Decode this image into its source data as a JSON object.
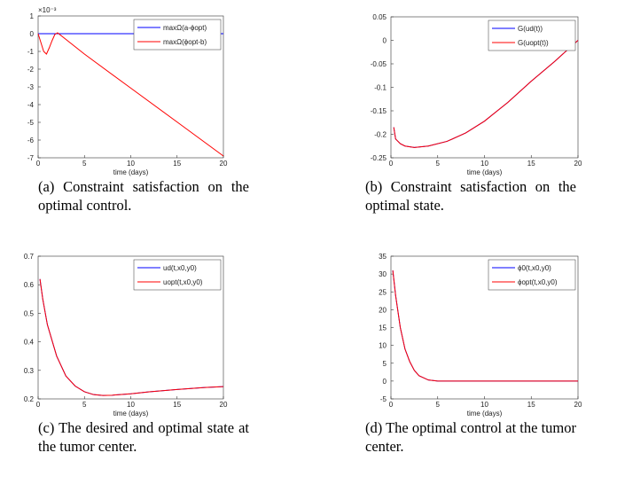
{
  "chart_data": [
    {
      "type": "line",
      "caption": "(a) Constraint satisfaction on the optimal control.",
      "xlabel": "time (days)",
      "y_exponent": "×10⁻³",
      "x": [
        0,
        0.3,
        0.6,
        0.9,
        1.2,
        1.5,
        1.8,
        2.1,
        5,
        10,
        15,
        20
      ],
      "series": [
        {
          "name": "maxΩ(a-ϕopt)",
          "color": "#0000ff",
          "values": [
            0,
            0,
            0,
            0,
            0,
            0,
            0,
            0,
            0,
            0,
            0,
            0
          ]
        },
        {
          "name": "maxΩ(ϕopt-b)",
          "color": "#ff0000",
          "values": [
            0,
            -0.5,
            -1.0,
            -1.15,
            -0.8,
            -0.4,
            -0.05,
            0.05,
            -1.15,
            -3.07,
            -4.98,
            -6.9
          ]
        }
      ],
      "xlim": [
        0,
        20
      ],
      "xticks": [
        0,
        5,
        10,
        15,
        20
      ],
      "ylim": [
        -7,
        1
      ],
      "yticks": [
        -7,
        -6,
        -5,
        -4,
        -3,
        -2,
        -1,
        0,
        1
      ],
      "legend": "upper right"
    },
    {
      "type": "line",
      "caption": "(b) Constraint satisfaction on the optimal state.",
      "xlabel": "time (days)",
      "x": [
        0.3,
        0.5,
        1,
        1.5,
        2.5,
        4,
        6,
        8,
        10,
        12.5,
        15,
        17.5,
        20
      ],
      "series": [
        {
          "name": "G(ud(t))",
          "color": "#0000ff",
          "values": [
            -0.185,
            -0.21,
            -0.22,
            -0.225,
            -0.228,
            -0.225,
            -0.215,
            -0.197,
            -0.172,
            -0.132,
            -0.087,
            -0.045,
            0
          ]
        },
        {
          "name": "G(uopt(t))",
          "color": "#ff0000",
          "values": [
            -0.185,
            -0.21,
            -0.22,
            -0.225,
            -0.228,
            -0.225,
            -0.215,
            -0.197,
            -0.172,
            -0.132,
            -0.087,
            -0.045,
            0
          ]
        }
      ],
      "xlim": [
        0,
        20
      ],
      "xticks": [
        0,
        5,
        10,
        15,
        20
      ],
      "ylim": [
        -0.25,
        0.05
      ],
      "yticks": [
        -0.25,
        -0.2,
        -0.15,
        -0.1,
        -0.05,
        0,
        0.05
      ],
      "legend": "upper right"
    },
    {
      "type": "line",
      "caption": "(c) The desired and optimal state at the tumor center.",
      "xlabel": "time (days)",
      "x": [
        0.2,
        0.5,
        1,
        2,
        3,
        4,
        5,
        6,
        7,
        8,
        10,
        12,
        15,
        18,
        20
      ],
      "series": [
        {
          "name": "ud(t,x0,y0)",
          "color": "#0000ff",
          "values": [
            0.62,
            0.55,
            0.46,
            0.35,
            0.28,
            0.245,
            0.225,
            0.215,
            0.212,
            0.213,
            0.218,
            0.225,
            0.233,
            0.24,
            0.243
          ]
        },
        {
          "name": "uopt(t,x0,y0)",
          "color": "#ff0000",
          "values": [
            0.62,
            0.55,
            0.46,
            0.35,
            0.28,
            0.245,
            0.225,
            0.215,
            0.212,
            0.213,
            0.218,
            0.225,
            0.233,
            0.24,
            0.243
          ]
        }
      ],
      "xlim": [
        0,
        20
      ],
      "xticks": [
        0,
        5,
        10,
        15,
        20
      ],
      "ylim": [
        0.2,
        0.7
      ],
      "yticks": [
        0.2,
        0.3,
        0.4,
        0.5,
        0.6,
        0.7
      ],
      "legend": "upper right"
    },
    {
      "type": "line",
      "caption": "(d) The optimal control at the tumor center.",
      "xlabel": "time (days)",
      "x": [
        0.2,
        0.5,
        1,
        1.5,
        2,
        2.5,
        3,
        4,
        5,
        10,
        15,
        20
      ],
      "series": [
        {
          "name": "ϕ0(t,x0,y0)",
          "color": "#0000ff",
          "values": [
            31,
            24,
            15,
            9,
            5.5,
            3,
            1.5,
            0.3,
            0,
            0,
            0,
            0
          ]
        },
        {
          "name": "ϕopt(t,x0,y0)",
          "color": "#ff0000",
          "values": [
            31,
            24,
            15,
            9,
            5.5,
            3,
            1.5,
            0.3,
            0,
            0,
            0,
            0
          ]
        }
      ],
      "xlim": [
        0,
        20
      ],
      "xticks": [
        0,
        5,
        10,
        15,
        20
      ],
      "ylim": [
        -5,
        35
      ],
      "yticks": [
        -5,
        0,
        5,
        10,
        15,
        20,
        25,
        30,
        35
      ],
      "legend": "upper right"
    }
  ]
}
